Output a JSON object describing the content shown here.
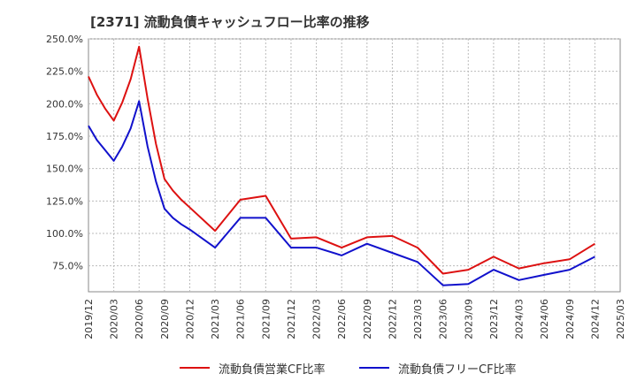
{
  "title": "[2371]  流動負債キャッシュフロー比率の推移",
  "chart_data": {
    "type": "line",
    "title": "[2371]  流動負債キャッシュフロー比率の推移",
    "xlabel": "",
    "ylabel": "",
    "ylim": [
      55,
      250
    ],
    "grid": true,
    "legend_position": "bottom",
    "y_ticks": [
      "250.0%",
      "225.0%",
      "200.0%",
      "175.0%",
      "150.0%",
      "125.0%",
      "100.0%",
      "75.0%"
    ],
    "x_ticks": [
      "2019/12",
      "2020/03",
      "2020/06",
      "2020/09",
      "2020/12",
      "2021/03",
      "2021/06",
      "2021/09",
      "2021/12",
      "2022/03",
      "2022/06",
      "2022/09",
      "2022/12",
      "2023/03",
      "2023/06",
      "2023/09",
      "2023/12",
      "2024/03",
      "2024/06",
      "2024/09",
      "2024/12",
      "2025/03"
    ],
    "x": [
      "2019/12",
      "2020/01",
      "2020/02",
      "2020/03",
      "2020/04",
      "2020/05",
      "2020/06",
      "2020/07",
      "2020/08",
      "2020/09",
      "2020/10",
      "2020/11",
      "2020/12",
      "2021/03",
      "2021/06",
      "2021/09",
      "2021/12",
      "2022/03",
      "2022/06",
      "2022/09",
      "2022/12",
      "2023/03",
      "2023/06",
      "2023/09",
      "2023/12",
      "2024/03",
      "2024/06",
      "2024/09",
      "2024/12"
    ],
    "series": [
      {
        "name": "流動負債営業CF比率",
        "color": "#dd1111",
        "values": [
          221,
          207,
          196,
          187,
          201,
          219,
          244,
          204,
          169,
          142,
          133,
          126,
          120,
          102,
          126,
          129,
          96,
          97,
          89,
          97,
          98,
          89,
          69,
          72,
          82,
          73,
          77,
          80,
          92
        ]
      },
      {
        "name": "流動負債フリーCF比率",
        "color": "#1111cc",
        "values": [
          183,
          172,
          164,
          156,
          167,
          181,
          202,
          167,
          140,
          119,
          112,
          107,
          103,
          89,
          112,
          112,
          89,
          89,
          83,
          92,
          85,
          78,
          60,
          61,
          72,
          64,
          68,
          72,
          82
        ]
      }
    ]
  }
}
